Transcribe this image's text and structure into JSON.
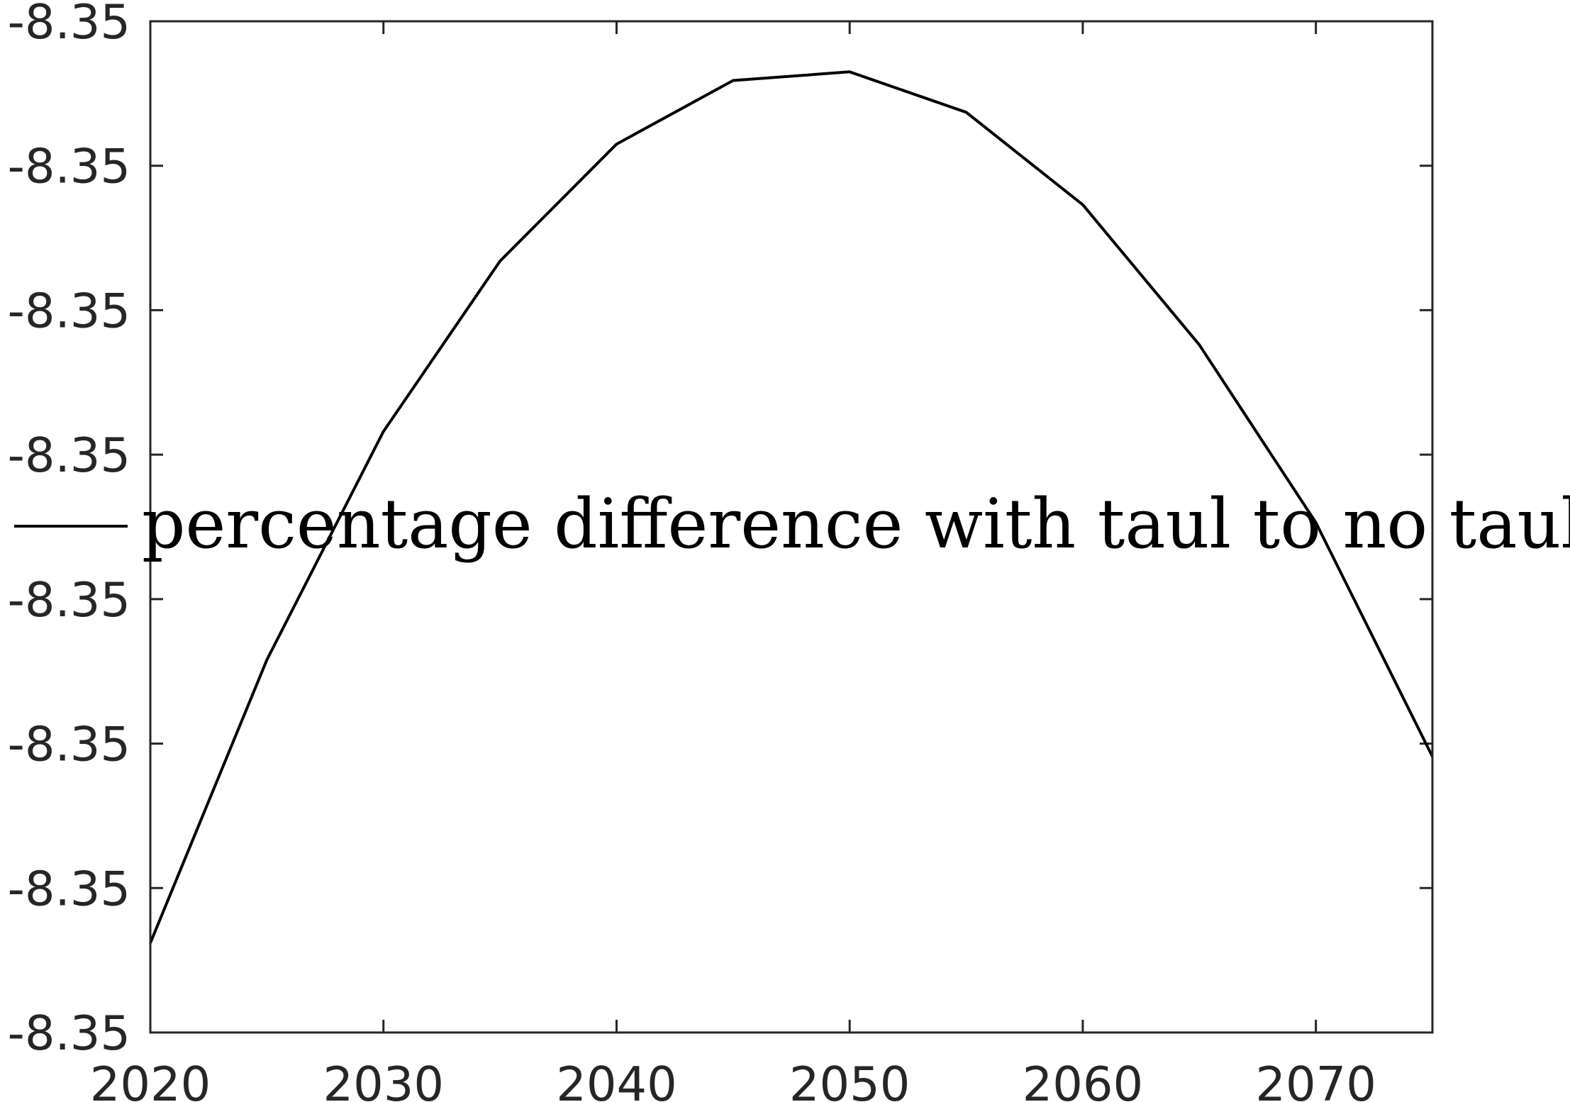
{
  "chart_data": {
    "type": "line",
    "title": "",
    "xlabel": "",
    "ylabel": "",
    "xlim": [
      2020,
      2075
    ],
    "ylim": [
      0,
      7
    ],
    "xticks": [
      2020,
      2030,
      2040,
      2050,
      2060,
      2070
    ],
    "xtick_labels": [
      "2020",
      "2030",
      "2040",
      "2050",
      "2060",
      "2070"
    ],
    "yticks": [
      0,
      1,
      2,
      3,
      4,
      5,
      6,
      7
    ],
    "ytick_labels": [
      "-8.35",
      "-8.35",
      "-8.35",
      "-8.35",
      "-8.35",
      "-8.35",
      "-8.35",
      "-8.35"
    ],
    "y_note": "y tick labels are all printed as -8.35; y values are on the relative tick-index scale (0 = bottom tick, 7 = top tick)",
    "grid": false,
    "legend_position": "center",
    "series": [
      {
        "name": "percentage difference with taul to no taul",
        "color": "#000000",
        "x": [
          2020,
          2025,
          2030,
          2035,
          2040,
          2045,
          2050,
          2055,
          2060,
          2065,
          2070,
          2075
        ],
        "y": [
          0.62,
          2.58,
          4.16,
          5.34,
          6.15,
          6.59,
          6.65,
          6.37,
          5.73,
          4.76,
          3.53,
          1.91
        ]
      }
    ]
  }
}
